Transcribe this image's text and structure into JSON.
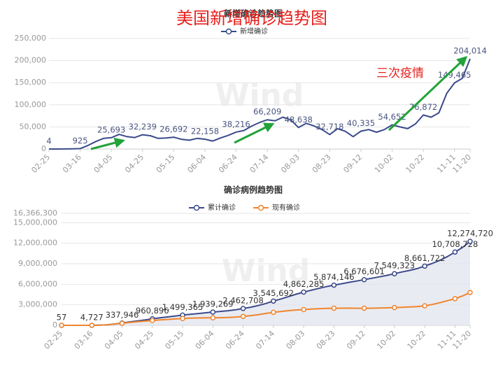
{
  "chart_data": [
    {
      "type": "line",
      "title": "新增确诊趋势图",
      "annotations": [
        "美国新增确诊趋势图",
        "三次疫情"
      ],
      "watermark": "Wind",
      "categories": [
        "02-25",
        null,
        null,
        null,
        "03-16",
        null,
        null,
        null,
        "04-05",
        null,
        null,
        null,
        "04-25",
        null,
        null,
        null,
        "05-15",
        null,
        null,
        null,
        "06-04",
        null,
        null,
        null,
        "06-24",
        null,
        null,
        null,
        "07-14",
        null,
        null,
        null,
        "08-03",
        null,
        null,
        null,
        "08-23",
        null,
        null,
        null,
        "09-12",
        null,
        null,
        null,
        "10-02",
        null,
        null,
        null,
        "10-22",
        null,
        null,
        null,
        "11-11",
        null,
        "11-20"
      ],
      "series": [
        {
          "name": "新增确诊",
          "color": "#3b4a8a",
          "area": false,
          "markers": false,
          "values": [
            4,
            20,
            100,
            400,
            925,
            8000,
            17000,
            24000,
            25693,
            33000,
            28000,
            26000,
            32239,
            30000,
            24000,
            25000,
            26692,
            22000,
            20000,
            24000,
            22158,
            18000,
            25000,
            31000,
            38216,
            42000,
            52000,
            60000,
            66209,
            64000,
            72000,
            66000,
            48638,
            58000,
            52000,
            44000,
            32718,
            46000,
            40000,
            28000,
            40335,
            44000,
            38000,
            44000,
            54652,
            50000,
            46000,
            57000,
            76872,
            72000,
            82000,
            126000,
            149465,
            160000,
            204014
          ],
          "value_labels": [
            "4",
            null,
            null,
            null,
            "925",
            null,
            null,
            null,
            "25,693",
            null,
            null,
            null,
            "32,239",
            null,
            null,
            null,
            "26,692",
            null,
            null,
            null,
            "22,158",
            null,
            null,
            null,
            "38,216",
            null,
            null,
            null,
            "66,209",
            null,
            null,
            null,
            "48,638",
            null,
            null,
            null,
            "32,718",
            null,
            null,
            null,
            "40,335",
            null,
            null,
            null,
            "54,652",
            null,
            null,
            null,
            "76,872",
            null,
            null,
            null,
            "149,465",
            null,
            "204,014"
          ]
        }
      ],
      "ylim": [
        0,
        250000
      ],
      "yticks": [
        0,
        {
          "value": 50000,
          "label": "50,000"
        },
        {
          "value": 100000,
          "label": "100,000"
        },
        {
          "value": 150000,
          "label": "150,000"
        },
        {
          "value": 200000,
          "label": "200,000"
        },
        {
          "value": 250000,
          "label": "250,000"
        }
      ],
      "grid": true
    },
    {
      "type": "line",
      "title": "确诊病例趋势图",
      "watermark": "Wind",
      "categories": [
        "02-25",
        null,
        null,
        null,
        "03-16",
        null,
        null,
        null,
        "04-05",
        null,
        null,
        null,
        "04-25",
        null,
        null,
        null,
        "05-15",
        null,
        null,
        null,
        "06-04",
        null,
        null,
        null,
        "06-24",
        null,
        null,
        null,
        "07-14",
        null,
        null,
        null,
        "08-03",
        null,
        null,
        null,
        "08-23",
        null,
        null,
        null,
        "09-12",
        null,
        null,
        null,
        "10-02",
        null,
        null,
        null,
        "10-22",
        null,
        null,
        null,
        "11-11",
        null,
        "11-20"
      ],
      "series": [
        {
          "name": "累计确诊",
          "color": "#3b4a8a",
          "area": true,
          "markers": true,
          "values": [
            57,
            70,
            250,
            1300,
            4727,
            26000,
            85000,
            190000,
            337946,
            500000,
            640000,
            780000,
            960896,
            1090000,
            1230000,
            1360000,
            1499365,
            1610000,
            1720000,
            1830000,
            1939269,
            2040000,
            2140000,
            2270000,
            2462708,
            2650000,
            2890000,
            3190000,
            3545692,
            3860000,
            4200000,
            4550000,
            4862285,
            5130000,
            5400000,
            5660000,
            5874146,
            6080000,
            6290000,
            6480000,
            6676601,
            6880000,
            7090000,
            7300000,
            7549323,
            7800000,
            8030000,
            8300000,
            8661722,
            9050000,
            9500000,
            10050000,
            10708728,
            11400000,
            12274720
          ],
          "value_labels": [
            "57",
            null,
            null,
            null,
            "4,727",
            null,
            null,
            null,
            "337,946",
            null,
            null,
            null,
            "960,896",
            null,
            null,
            null,
            "1,499,365",
            null,
            null,
            null,
            "1,939,269",
            null,
            null,
            null,
            "2,462,708",
            null,
            null,
            null,
            "3,545,692",
            null,
            null,
            null,
            "4,862,285",
            null,
            null,
            null,
            "5,874,146",
            null,
            null,
            null,
            "6,676,601",
            null,
            null,
            null,
            "7,549,323",
            null,
            null,
            null,
            "8,661,722",
            null,
            null,
            null,
            "10,708,728",
            null,
            "12,274,720"
          ]
        },
        {
          "name": "现有确诊",
          "color": "#f0852d",
          "area": false,
          "markers": true,
          "values": [
            50,
            60,
            230,
            1200,
            4500,
            25000,
            80000,
            170000,
            300000,
            420000,
            520000,
            610000,
            700000,
            790000,
            860000,
            930000,
            1000000,
            1040000,
            1070000,
            1090000,
            1100000,
            1120000,
            1150000,
            1200000,
            1300000,
            1420000,
            1570000,
            1740000,
            1900000,
            2030000,
            2150000,
            2240000,
            2300000,
            2370000,
            2430000,
            2480000,
            2500000,
            2510000,
            2520000,
            2500000,
            2500000,
            2510000,
            2530000,
            2560000,
            2600000,
            2640000,
            2680000,
            2730000,
            2850000,
            3050000,
            3300000,
            3600000,
            3900000,
            4300000,
            4800000
          ]
        }
      ],
      "ylim": [
        0,
        16366300
      ],
      "yticks": [
        0,
        {
          "value": 3000000,
          "label": "3,000,000"
        },
        {
          "value": 6000000,
          "label": "6,000,000"
        },
        {
          "value": 9000000,
          "label": "9,000,000"
        },
        {
          "value": 12000000,
          "label": "12,000,000"
        },
        {
          "value": 15000000,
          "label": "15,000,000"
        },
        {
          "value": 16366300,
          "label": "16,366,300"
        }
      ],
      "grid": true
    }
  ]
}
